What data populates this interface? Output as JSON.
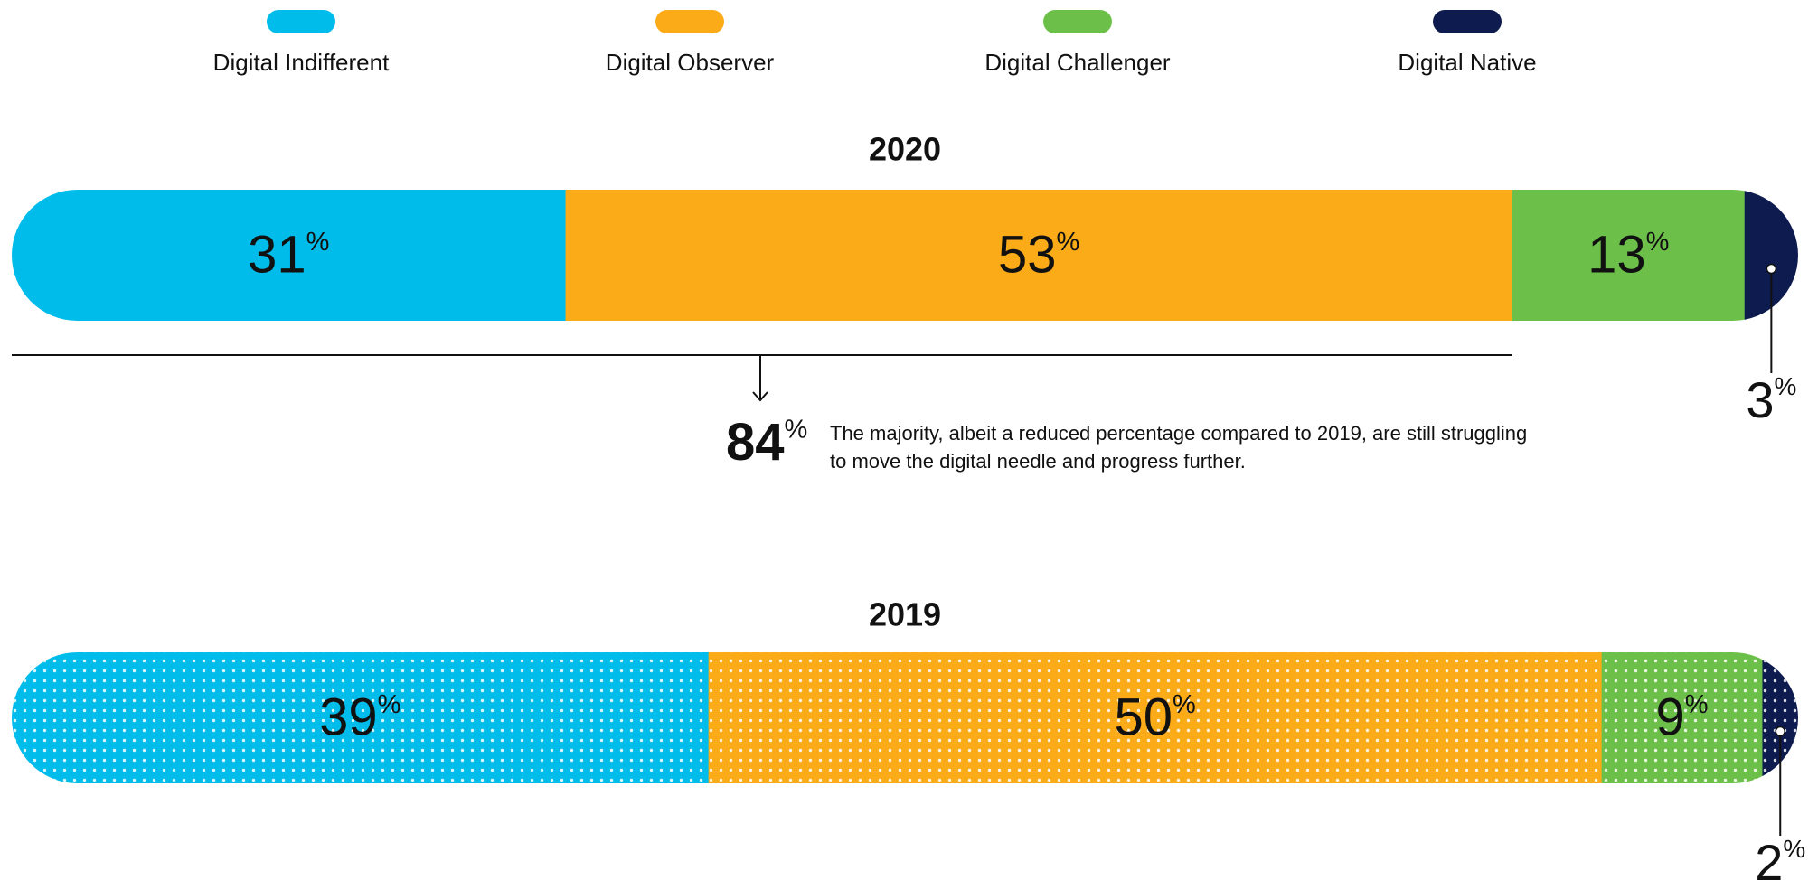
{
  "chart_data": {
    "type": "bar",
    "orientation": "horizontal",
    "stacked": true,
    "categories": [
      "2020",
      "2019"
    ],
    "series": [
      {
        "name": "Digital Indifferent",
        "color": "#00bceb",
        "values": [
          31,
          39
        ],
        "value_labels": [
          "31%",
          "39%"
        ]
      },
      {
        "name": "Digital Observer",
        "color": "#fbab18",
        "values": [
          53,
          50
        ],
        "value_labels": [
          "53%",
          "50%"
        ]
      },
      {
        "name": "Digital Challenger",
        "color": "#6cc04a",
        "values": [
          13,
          9
        ],
        "value_labels": [
          "13%",
          "9%"
        ]
      },
      {
        "name": "Digital Native",
        "color": "#0d1b4f",
        "values": [
          3,
          2
        ],
        "value_labels": [
          "3%",
          "2%"
        ]
      }
    ],
    "annotation": {
      "value": 84,
      "label": "84%",
      "text": "The majority, albeit a reduced percentage compared to 2019, are still struggling to move the digital needle and progress further."
    }
  }
}
